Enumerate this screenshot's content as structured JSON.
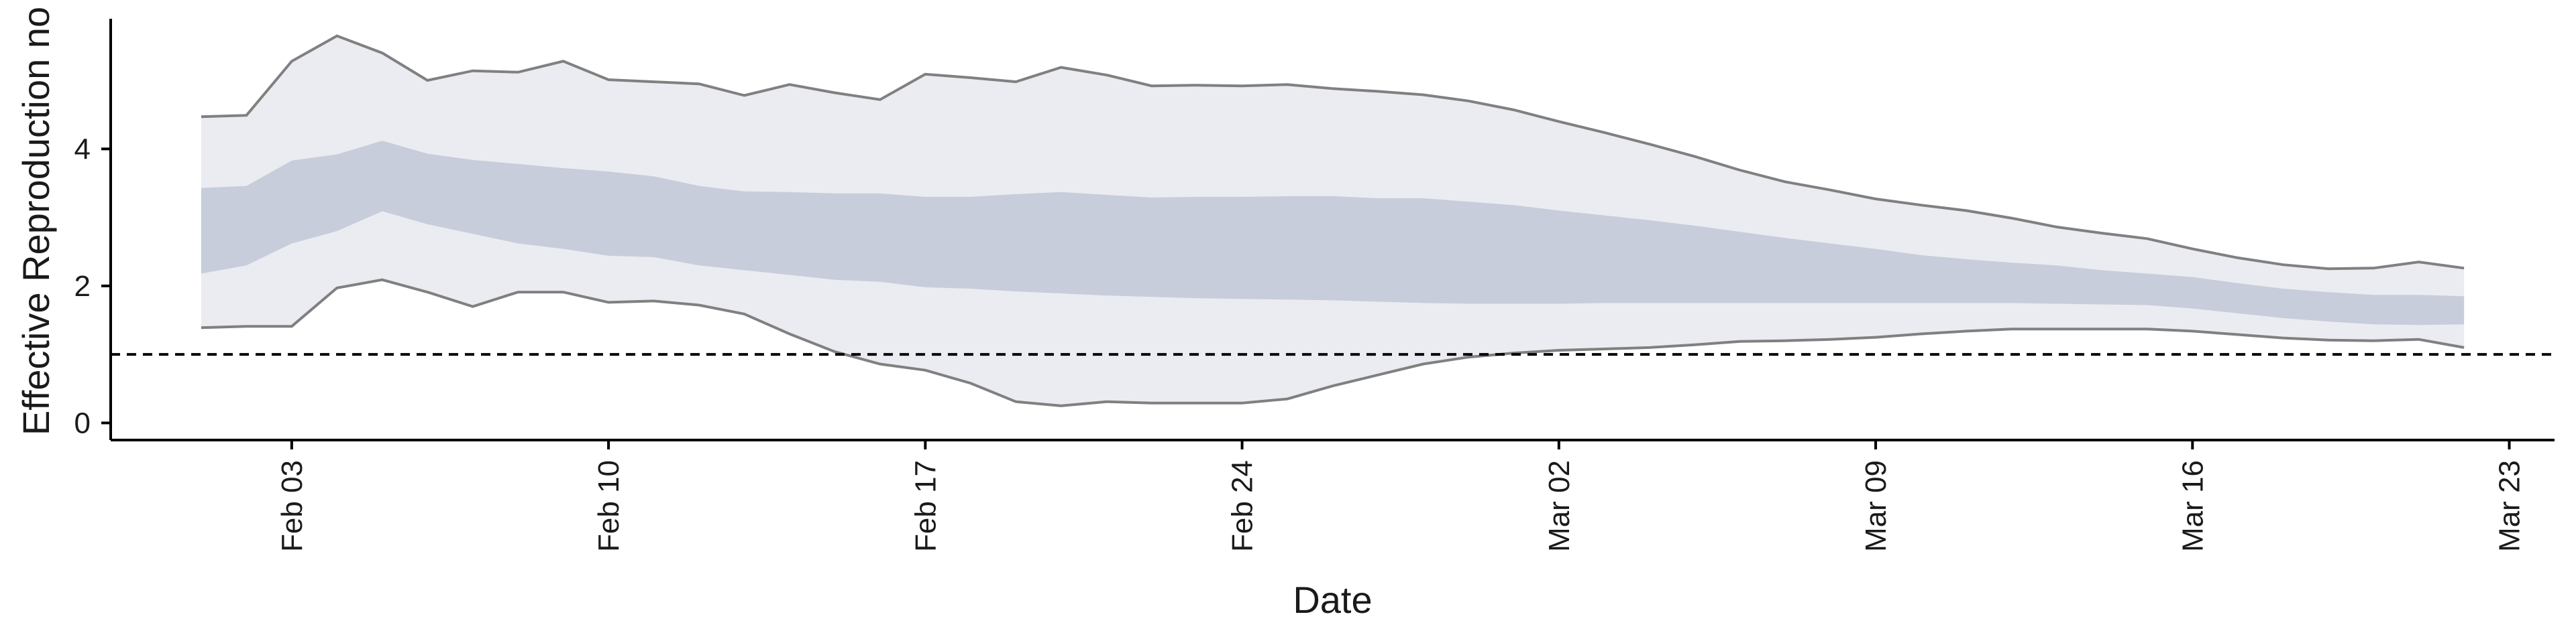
{
  "chart_data": {
    "type": "area",
    "xlabel": "Date",
    "ylabel": "Effective Reproduction no",
    "x_axis_type": "date",
    "xlim": [
      "2020-01-30",
      "2020-03-24"
    ],
    "ylim": [
      -0.25,
      5.9
    ],
    "y_ticks": [
      0,
      2,
      4
    ],
    "x_ticks": [
      {
        "date": "2020-02-03",
        "label": "Feb 03"
      },
      {
        "date": "2020-02-10",
        "label": "Feb 10"
      },
      {
        "date": "2020-02-17",
        "label": "Feb 17"
      },
      {
        "date": "2020-02-24",
        "label": "Feb 24"
      },
      {
        "date": "2020-03-02",
        "label": "Mar 02"
      },
      {
        "date": "2020-03-09",
        "label": "Mar 09"
      },
      {
        "date": "2020-03-16",
        "label": "Mar 16"
      },
      {
        "date": "2020-03-23",
        "label": "Mar 23"
      }
    ],
    "reference_line": {
      "y": 1,
      "style": "dashed",
      "color": "#000000"
    },
    "grid": false,
    "colors": {
      "outer_band": "#ebecf1",
      "inner_band": "#c8cddb",
      "bound_line": "#808080"
    },
    "series": [
      {
        "band": "outer",
        "x": [
          "2020-02-01",
          "2020-02-02",
          "2020-02-03",
          "2020-02-04",
          "2020-02-05",
          "2020-02-06",
          "2020-02-07",
          "2020-02-08",
          "2020-02-09",
          "2020-02-10",
          "2020-02-11",
          "2020-02-12",
          "2020-02-13",
          "2020-02-14",
          "2020-02-15",
          "2020-02-16",
          "2020-02-17",
          "2020-02-18",
          "2020-02-19",
          "2020-02-20",
          "2020-02-21",
          "2020-02-22",
          "2020-02-23",
          "2020-02-24",
          "2020-02-25",
          "2020-02-26",
          "2020-02-27",
          "2020-02-28",
          "2020-02-29",
          "2020-03-01",
          "2020-03-02",
          "2020-03-03",
          "2020-03-04",
          "2020-03-05",
          "2020-03-06",
          "2020-03-07",
          "2020-03-08",
          "2020-03-09",
          "2020-03-10",
          "2020-03-11",
          "2020-03-12",
          "2020-03-13",
          "2020-03-14",
          "2020-03-15",
          "2020-03-16",
          "2020-03-17",
          "2020-03-18",
          "2020-03-19",
          "2020-03-20",
          "2020-03-21",
          "2020-03-22"
        ],
        "upper": [
          4.47,
          4.49,
          5.28,
          5.65,
          5.4,
          5.0,
          5.14,
          5.12,
          5.28,
          5.01,
          4.98,
          4.95,
          4.78,
          4.94,
          4.82,
          4.72,
          5.09,
          5.04,
          4.98,
          5.19,
          5.08,
          4.92,
          4.93,
          4.92,
          4.94,
          4.88,
          4.84,
          4.79,
          4.7,
          4.57,
          4.4,
          4.24,
          4.07,
          3.89,
          3.69,
          3.52,
          3.4,
          3.27,
          3.18,
          3.1,
          2.99,
          2.86,
          2.77,
          2.69,
          2.54,
          2.41,
          2.31,
          2.25,
          2.26,
          2.35,
          2.26
        ],
        "lower": [
          1.39,
          1.41,
          1.41,
          1.97,
          2.09,
          1.91,
          1.7,
          1.91,
          1.91,
          1.76,
          1.78,
          1.72,
          1.59,
          1.3,
          1.04,
          0.86,
          0.77,
          0.58,
          0.31,
          0.25,
          0.31,
          0.29,
          0.29,
          0.29,
          0.35,
          0.54,
          0.7,
          0.86,
          0.96,
          1.02,
          1.06,
          1.08,
          1.1,
          1.14,
          1.19,
          1.2,
          1.22,
          1.25,
          1.3,
          1.34,
          1.37,
          1.37,
          1.37,
          1.37,
          1.34,
          1.29,
          1.24,
          1.21,
          1.2,
          1.22,
          1.1
        ]
      },
      {
        "band": "inner",
        "x": [
          "2020-02-01",
          "2020-02-02",
          "2020-02-03",
          "2020-02-04",
          "2020-02-05",
          "2020-02-06",
          "2020-02-07",
          "2020-02-08",
          "2020-02-09",
          "2020-02-10",
          "2020-02-11",
          "2020-02-12",
          "2020-02-13",
          "2020-02-14",
          "2020-02-15",
          "2020-02-16",
          "2020-02-17",
          "2020-02-18",
          "2020-02-19",
          "2020-02-20",
          "2020-02-21",
          "2020-02-22",
          "2020-02-23",
          "2020-02-24",
          "2020-02-25",
          "2020-02-26",
          "2020-02-27",
          "2020-02-28",
          "2020-02-29",
          "2020-03-01",
          "2020-03-02",
          "2020-03-03",
          "2020-03-04",
          "2020-03-05",
          "2020-03-06",
          "2020-03-07",
          "2020-03-08",
          "2020-03-09",
          "2020-03-10",
          "2020-03-11",
          "2020-03-12",
          "2020-03-13",
          "2020-03-14",
          "2020-03-15",
          "2020-03-16",
          "2020-03-17",
          "2020-03-18",
          "2020-03-19",
          "2020-03-20",
          "2020-03-21",
          "2020-03-22"
        ],
        "upper": [
          3.43,
          3.46,
          3.83,
          3.92,
          4.12,
          3.93,
          3.84,
          3.78,
          3.72,
          3.67,
          3.6,
          3.46,
          3.38,
          3.37,
          3.35,
          3.35,
          3.3,
          3.3,
          3.34,
          3.37,
          3.33,
          3.29,
          3.3,
          3.3,
          3.31,
          3.31,
          3.28,
          3.28,
          3.23,
          3.18,
          3.1,
          3.03,
          2.96,
          2.88,
          2.79,
          2.7,
          2.62,
          2.54,
          2.45,
          2.39,
          2.34,
          2.3,
          2.23,
          2.18,
          2.13,
          2.04,
          1.96,
          1.91,
          1.87,
          1.87,
          1.85
        ],
        "lower": [
          2.18,
          2.3,
          2.62,
          2.8,
          3.09,
          2.9,
          2.76,
          2.62,
          2.54,
          2.44,
          2.42,
          2.3,
          2.23,
          2.16,
          2.09,
          2.06,
          1.98,
          1.96,
          1.92,
          1.89,
          1.86,
          1.84,
          1.82,
          1.81,
          1.8,
          1.79,
          1.77,
          1.75,
          1.74,
          1.74,
          1.74,
          1.75,
          1.75,
          1.75,
          1.75,
          1.75,
          1.75,
          1.75,
          1.75,
          1.75,
          1.75,
          1.74,
          1.73,
          1.72,
          1.67,
          1.6,
          1.53,
          1.48,
          1.44,
          1.43,
          1.44
        ]
      }
    ]
  }
}
